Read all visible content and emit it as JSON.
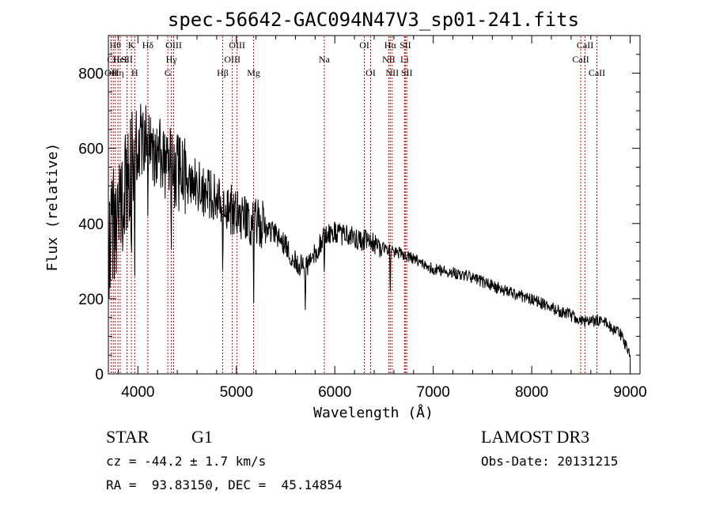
{
  "chart_data": {
    "type": "line",
    "title": "spec-56642-GAC094N47V3_sp01-241.fits",
    "xlabel": "Wavelength (Å)",
    "ylabel": "Flux (relative)",
    "xlim": [
      3700,
      9100
    ],
    "ylim": [
      0,
      900
    ],
    "xticks": [
      4000,
      5000,
      6000,
      7000,
      8000,
      9000
    ],
    "yticks": [
      0,
      200,
      400,
      600,
      800
    ],
    "continuum": {
      "x": [
        3700,
        3800,
        3900,
        4000,
        4100,
        4200,
        4300,
        4400,
        4500,
        4600,
        4700,
        4800,
        4900,
        5000,
        5100,
        5200,
        5300,
        5400,
        5500,
        5600,
        5700,
        5800,
        5900,
        6000,
        6100,
        6200,
        6300,
        6400,
        6500,
        6600,
        6700,
        6800,
        6900,
        7000,
        7200,
        7400,
        7600,
        7800,
        8000,
        8200,
        8400,
        8500,
        8600,
        8700,
        8800,
        8900,
        8950,
        9000
      ],
      "y": [
        350,
        420,
        500,
        620,
        630,
        580,
        560,
        540,
        520,
        500,
        480,
        460,
        445,
        430,
        420,
        400,
        390,
        370,
        340,
        300,
        280,
        320,
        370,
        375,
        370,
        360,
        355,
        345,
        335,
        325,
        318,
        305,
        290,
        280,
        270,
        255,
        235,
        215,
        200,
        175,
        155,
        140,
        138,
        145,
        125,
        105,
        80,
        55
      ]
    },
    "absorption_dips": [
      {
        "x": 3934,
        "y": 250
      },
      {
        "x": 3968,
        "y": 260
      },
      {
        "x": 4101,
        "y": 380
      },
      {
        "x": 4340,
        "y": 330
      },
      {
        "x": 4861,
        "y": 250
      },
      {
        "x": 5175,
        "y": 140
      },
      {
        "x": 5700,
        "y": 170
      },
      {
        "x": 5893,
        "y": 250
      },
      {
        "x": 6563,
        "y": 200
      }
    ],
    "line_markers": [
      {
        "x": 3727,
        "label": "OII",
        "row": 3
      },
      {
        "x": 3750,
        "label": "CII",
        "row": 2
      },
      {
        "x": 3770,
        "label": "Hθ",
        "row": 1
      },
      {
        "x": 3798,
        "label": "Hη",
        "row": 3
      },
      {
        "x": 3820,
        "label": "HeI",
        "row": 2
      },
      {
        "x": 3889,
        "label": "SII",
        "row": 2
      },
      {
        "x": 3934,
        "label": "K",
        "row": 1
      },
      {
        "x": 3968,
        "label": "H",
        "row": 3
      },
      {
        "x": 4101,
        "label": "Hδ",
        "row": 1
      },
      {
        "x": 4304,
        "label": "G",
        "row": 3
      },
      {
        "x": 4340,
        "label": "Hγ",
        "row": 2
      },
      {
        "x": 4363,
        "label": "OIII",
        "row": 1
      },
      {
        "x": 4861,
        "label": "Hβ",
        "row": 3
      },
      {
        "x": 4959,
        "label": "OIII",
        "row": 2
      },
      {
        "x": 5007,
        "label": "OIII",
        "row": 1
      },
      {
        "x": 5175,
        "label": "Mg",
        "row": 3
      },
      {
        "x": 5893,
        "label": "Na",
        "row": 2
      },
      {
        "x": 6300,
        "label": "OI",
        "row": 1
      },
      {
        "x": 6364,
        "label": "OI",
        "row": 3
      },
      {
        "x": 6548,
        "label": "NII",
        "row": 2
      },
      {
        "x": 6563,
        "label": "Hα",
        "row": 1
      },
      {
        "x": 6583,
        "label": "NII",
        "row": 3
      },
      {
        "x": 6708,
        "label": "Li",
        "row": 2
      },
      {
        "x": 6716,
        "label": "SII",
        "row": 1
      },
      {
        "x": 6731,
        "label": "SII",
        "row": 3
      },
      {
        "x": 8498,
        "label": "CaII",
        "row": 2
      },
      {
        "x": 8542,
        "label": "CaII",
        "row": 1
      },
      {
        "x": 8662,
        "label": "CaII",
        "row": 3
      }
    ],
    "line_color": "#000000",
    "marker_color": "#cc0000"
  },
  "info": {
    "class_label": "STAR",
    "subclass": "G1",
    "survey": "LAMOST DR3",
    "cz_text": "cz = -44.2 ± 1.7 km/s",
    "obs_date_text": "Obs-Date: 20131215",
    "coords_text": "RA =  93.83150, DEC =  45.14854"
  }
}
